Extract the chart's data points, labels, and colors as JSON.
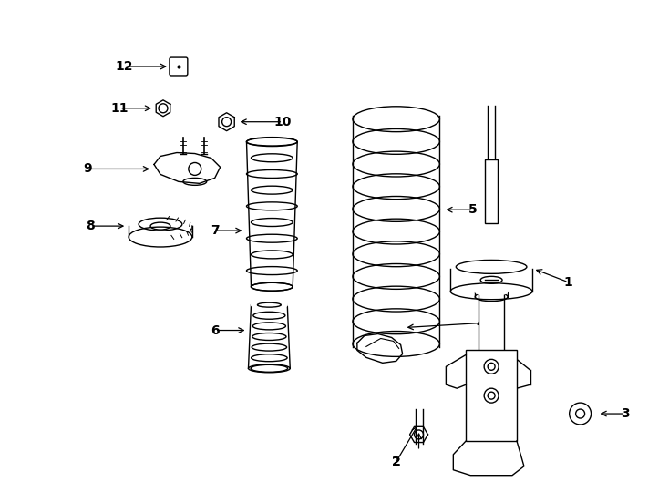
{
  "background_color": "#ffffff",
  "line_color": "#000000",
  "figure_width": 7.34,
  "figure_height": 5.4,
  "dpi": 100,
  "xlim": [
    0,
    734
  ],
  "ylim": [
    0,
    540
  ]
}
